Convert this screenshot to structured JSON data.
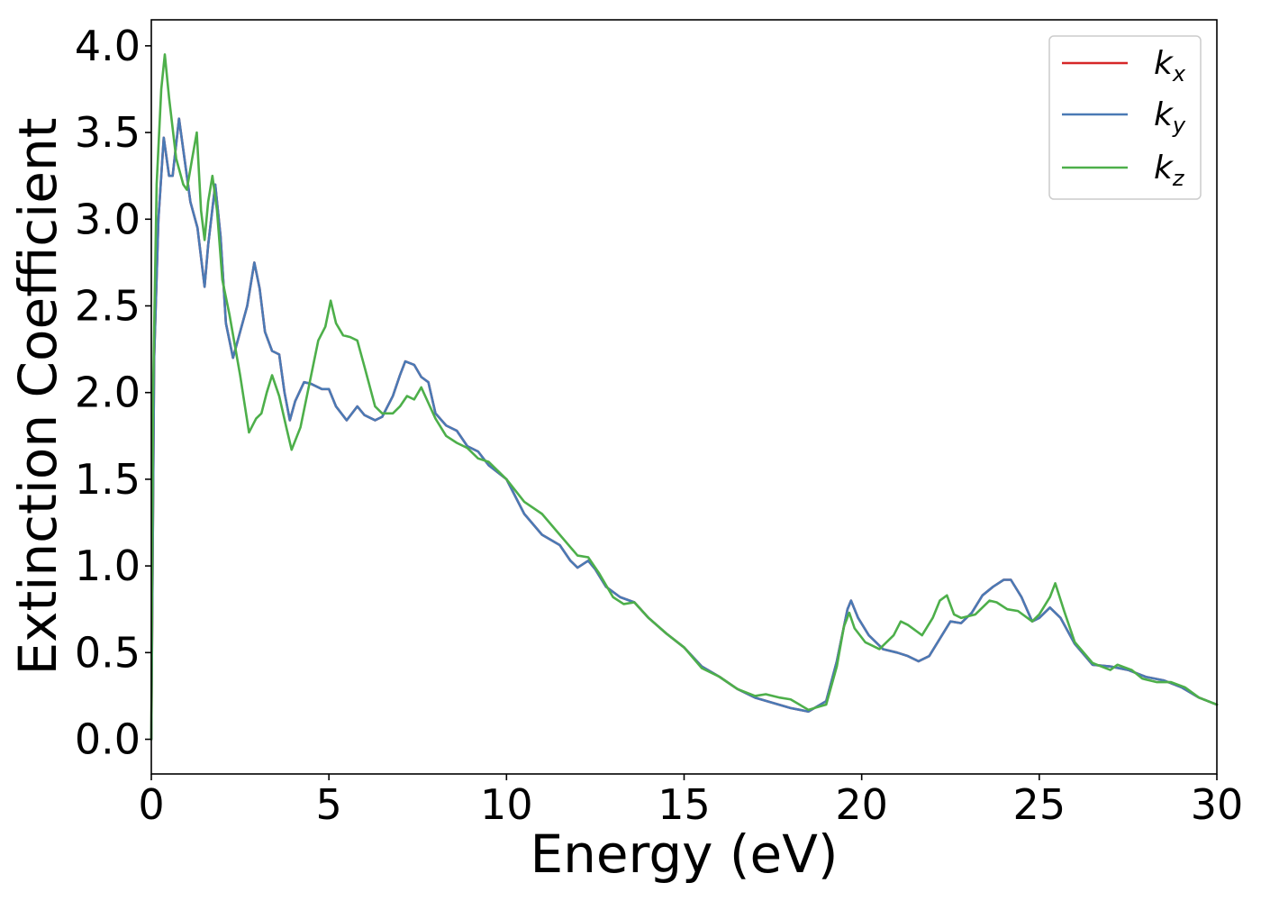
{
  "chart_data": {
    "type": "line",
    "title": "",
    "xlabel": "Energy (eV)",
    "ylabel": "Extinction Coefficient",
    "xlim": [
      0,
      30
    ],
    "ylim": [
      -0.2,
      4.15
    ],
    "grid": false,
    "legend_position": "top-right",
    "x_ticks": [
      0,
      5,
      10,
      15,
      20,
      25,
      30
    ],
    "x_tick_labels": [
      "0",
      "5",
      "10",
      "15",
      "20",
      "25",
      "30"
    ],
    "y_ticks": [
      0.0,
      0.5,
      1.0,
      1.5,
      2.0,
      2.5,
      3.0,
      3.5,
      4.0
    ],
    "y_tick_labels": [
      "0.0",
      "0.5",
      "1.0",
      "1.5",
      "2.0",
      "2.5",
      "3.0",
      "3.5",
      "4.0"
    ],
    "series": [
      {
        "name": "k_x",
        "label_base": "k",
        "label_sub": "x",
        "color": "#d62728",
        "points": [
          [
            0,
            0
          ],
          [
            0.08,
            2.2
          ],
          [
            0.2,
            3.0
          ],
          [
            0.35,
            3.47
          ],
          [
            0.5,
            3.25
          ],
          [
            0.6,
            3.25
          ],
          [
            0.78,
            3.58
          ],
          [
            0.9,
            3.4
          ],
          [
            1.1,
            3.1
          ],
          [
            1.3,
            2.95
          ],
          [
            1.5,
            2.61
          ],
          [
            1.6,
            2.85
          ],
          [
            1.8,
            3.2
          ],
          [
            1.95,
            2.9
          ],
          [
            2.1,
            2.4
          ],
          [
            2.3,
            2.2
          ],
          [
            2.5,
            2.35
          ],
          [
            2.7,
            2.5
          ],
          [
            2.9,
            2.75
          ],
          [
            3.05,
            2.6
          ],
          [
            3.2,
            2.35
          ],
          [
            3.4,
            2.24
          ],
          [
            3.6,
            2.22
          ],
          [
            3.75,
            2.0
          ],
          [
            3.9,
            1.84
          ],
          [
            4.05,
            1.95
          ],
          [
            4.3,
            2.06
          ],
          [
            4.5,
            2.05
          ],
          [
            4.8,
            2.02
          ],
          [
            5.0,
            2.02
          ],
          [
            5.2,
            1.92
          ],
          [
            5.5,
            1.84
          ],
          [
            5.8,
            1.92
          ],
          [
            6.0,
            1.87
          ],
          [
            6.3,
            1.84
          ],
          [
            6.5,
            1.86
          ],
          [
            6.8,
            1.98
          ],
          [
            7.0,
            2.1
          ],
          [
            7.15,
            2.18
          ],
          [
            7.4,
            2.16
          ],
          [
            7.6,
            2.09
          ],
          [
            7.8,
            2.06
          ],
          [
            8.0,
            1.88
          ],
          [
            8.3,
            1.81
          ],
          [
            8.6,
            1.78
          ],
          [
            8.9,
            1.69
          ],
          [
            9.2,
            1.66
          ],
          [
            9.5,
            1.58
          ],
          [
            10.0,
            1.5
          ],
          [
            10.5,
            1.3
          ],
          [
            11.0,
            1.18
          ],
          [
            11.5,
            1.12
          ],
          [
            11.8,
            1.03
          ],
          [
            12.0,
            0.99
          ],
          [
            12.3,
            1.03
          ],
          [
            12.5,
            0.98
          ],
          [
            12.8,
            0.88
          ],
          [
            13.2,
            0.82
          ],
          [
            13.6,
            0.79
          ],
          [
            14.0,
            0.7
          ],
          [
            14.5,
            0.61
          ],
          [
            15.0,
            0.53
          ],
          [
            15.5,
            0.42
          ],
          [
            16.0,
            0.36
          ],
          [
            16.5,
            0.29
          ],
          [
            17.0,
            0.24
          ],
          [
            17.5,
            0.21
          ],
          [
            18.0,
            0.18
          ],
          [
            18.5,
            0.16
          ],
          [
            19.0,
            0.22
          ],
          [
            19.3,
            0.45
          ],
          [
            19.6,
            0.75
          ],
          [
            19.7,
            0.8
          ],
          [
            19.9,
            0.7
          ],
          [
            20.2,
            0.6
          ],
          [
            20.6,
            0.52
          ],
          [
            21.0,
            0.5
          ],
          [
            21.3,
            0.48
          ],
          [
            21.6,
            0.45
          ],
          [
            21.9,
            0.48
          ],
          [
            22.2,
            0.58
          ],
          [
            22.5,
            0.68
          ],
          [
            22.8,
            0.67
          ],
          [
            23.1,
            0.73
          ],
          [
            23.4,
            0.83
          ],
          [
            23.7,
            0.88
          ],
          [
            24.0,
            0.92
          ],
          [
            24.2,
            0.92
          ],
          [
            24.5,
            0.82
          ],
          [
            24.8,
            0.68
          ],
          [
            25.0,
            0.7
          ],
          [
            25.3,
            0.76
          ],
          [
            25.6,
            0.7
          ],
          [
            26.0,
            0.55
          ],
          [
            26.5,
            0.43
          ],
          [
            27.0,
            0.42
          ],
          [
            27.5,
            0.4
          ],
          [
            28.0,
            0.36
          ],
          [
            28.5,
            0.34
          ],
          [
            29.0,
            0.3
          ],
          [
            29.5,
            0.24
          ],
          [
            30.0,
            0.2
          ]
        ]
      },
      {
        "name": "k_y",
        "label_base": "k",
        "label_sub": "y",
        "color": "#4a7ab5",
        "points": [
          [
            0,
            0
          ],
          [
            0.08,
            2.2
          ],
          [
            0.2,
            3.0
          ],
          [
            0.35,
            3.47
          ],
          [
            0.5,
            3.25
          ],
          [
            0.6,
            3.25
          ],
          [
            0.78,
            3.58
          ],
          [
            0.9,
            3.4
          ],
          [
            1.1,
            3.1
          ],
          [
            1.3,
            2.95
          ],
          [
            1.5,
            2.61
          ],
          [
            1.6,
            2.85
          ],
          [
            1.8,
            3.2
          ],
          [
            1.95,
            2.9
          ],
          [
            2.1,
            2.4
          ],
          [
            2.3,
            2.2
          ],
          [
            2.5,
            2.35
          ],
          [
            2.7,
            2.5
          ],
          [
            2.9,
            2.75
          ],
          [
            3.05,
            2.6
          ],
          [
            3.2,
            2.35
          ],
          [
            3.4,
            2.24
          ],
          [
            3.6,
            2.22
          ],
          [
            3.75,
            2.0
          ],
          [
            3.9,
            1.84
          ],
          [
            4.05,
            1.95
          ],
          [
            4.3,
            2.06
          ],
          [
            4.5,
            2.05
          ],
          [
            4.8,
            2.02
          ],
          [
            5.0,
            2.02
          ],
          [
            5.2,
            1.92
          ],
          [
            5.5,
            1.84
          ],
          [
            5.8,
            1.92
          ],
          [
            6.0,
            1.87
          ],
          [
            6.3,
            1.84
          ],
          [
            6.5,
            1.86
          ],
          [
            6.8,
            1.98
          ],
          [
            7.0,
            2.1
          ],
          [
            7.15,
            2.18
          ],
          [
            7.4,
            2.16
          ],
          [
            7.6,
            2.09
          ],
          [
            7.8,
            2.06
          ],
          [
            8.0,
            1.88
          ],
          [
            8.3,
            1.81
          ],
          [
            8.6,
            1.78
          ],
          [
            8.9,
            1.69
          ],
          [
            9.2,
            1.66
          ],
          [
            9.5,
            1.58
          ],
          [
            10.0,
            1.5
          ],
          [
            10.5,
            1.3
          ],
          [
            11.0,
            1.18
          ],
          [
            11.5,
            1.12
          ],
          [
            11.8,
            1.03
          ],
          [
            12.0,
            0.99
          ],
          [
            12.3,
            1.03
          ],
          [
            12.5,
            0.98
          ],
          [
            12.8,
            0.88
          ],
          [
            13.2,
            0.82
          ],
          [
            13.6,
            0.79
          ],
          [
            14.0,
            0.7
          ],
          [
            14.5,
            0.61
          ],
          [
            15.0,
            0.53
          ],
          [
            15.5,
            0.42
          ],
          [
            16.0,
            0.36
          ],
          [
            16.5,
            0.29
          ],
          [
            17.0,
            0.24
          ],
          [
            17.5,
            0.21
          ],
          [
            18.0,
            0.18
          ],
          [
            18.5,
            0.16
          ],
          [
            19.0,
            0.22
          ],
          [
            19.3,
            0.45
          ],
          [
            19.6,
            0.75
          ],
          [
            19.7,
            0.8
          ],
          [
            19.9,
            0.7
          ],
          [
            20.2,
            0.6
          ],
          [
            20.6,
            0.52
          ],
          [
            21.0,
            0.5
          ],
          [
            21.3,
            0.48
          ],
          [
            21.6,
            0.45
          ],
          [
            21.9,
            0.48
          ],
          [
            22.2,
            0.58
          ],
          [
            22.5,
            0.68
          ],
          [
            22.8,
            0.67
          ],
          [
            23.1,
            0.73
          ],
          [
            23.4,
            0.83
          ],
          [
            23.7,
            0.88
          ],
          [
            24.0,
            0.92
          ],
          [
            24.2,
            0.92
          ],
          [
            24.5,
            0.82
          ],
          [
            24.8,
            0.68
          ],
          [
            25.0,
            0.7
          ],
          [
            25.3,
            0.76
          ],
          [
            25.6,
            0.7
          ],
          [
            26.0,
            0.55
          ],
          [
            26.5,
            0.43
          ],
          [
            27.0,
            0.42
          ],
          [
            27.5,
            0.4
          ],
          [
            28.0,
            0.36
          ],
          [
            28.5,
            0.34
          ],
          [
            29.0,
            0.3
          ],
          [
            29.5,
            0.24
          ],
          [
            30.0,
            0.2
          ]
        ]
      },
      {
        "name": "k_z",
        "label_base": "k",
        "label_sub": "z",
        "color": "#4daf4a",
        "points": [
          [
            0,
            0
          ],
          [
            0.05,
            2.0
          ],
          [
            0.15,
            3.2
          ],
          [
            0.28,
            3.75
          ],
          [
            0.38,
            3.95
          ],
          [
            0.5,
            3.7
          ],
          [
            0.7,
            3.35
          ],
          [
            0.9,
            3.2
          ],
          [
            1.0,
            3.17
          ],
          [
            1.15,
            3.35
          ],
          [
            1.28,
            3.5
          ],
          [
            1.4,
            3.05
          ],
          [
            1.5,
            2.88
          ],
          [
            1.6,
            3.1
          ],
          [
            1.72,
            3.25
          ],
          [
            1.85,
            3.05
          ],
          [
            2.0,
            2.65
          ],
          [
            2.2,
            2.45
          ],
          [
            2.5,
            2.1
          ],
          [
            2.75,
            1.77
          ],
          [
            2.95,
            1.85
          ],
          [
            3.1,
            1.88
          ],
          [
            3.25,
            2.0
          ],
          [
            3.4,
            2.1
          ],
          [
            3.6,
            1.98
          ],
          [
            3.8,
            1.8
          ],
          [
            3.95,
            1.67
          ],
          [
            4.2,
            1.8
          ],
          [
            4.5,
            2.1
          ],
          [
            4.7,
            2.3
          ],
          [
            4.9,
            2.38
          ],
          [
            5.05,
            2.53
          ],
          [
            5.2,
            2.4
          ],
          [
            5.4,
            2.33
          ],
          [
            5.6,
            2.32
          ],
          [
            5.8,
            2.3
          ],
          [
            6.0,
            2.15
          ],
          [
            6.3,
            1.92
          ],
          [
            6.5,
            1.88
          ],
          [
            6.8,
            1.88
          ],
          [
            7.0,
            1.92
          ],
          [
            7.2,
            1.98
          ],
          [
            7.4,
            1.96
          ],
          [
            7.6,
            2.03
          ],
          [
            7.8,
            1.94
          ],
          [
            8.0,
            1.85
          ],
          [
            8.3,
            1.75
          ],
          [
            8.6,
            1.71
          ],
          [
            8.9,
            1.68
          ],
          [
            9.2,
            1.62
          ],
          [
            9.5,
            1.6
          ],
          [
            10.0,
            1.5
          ],
          [
            10.5,
            1.37
          ],
          [
            11.0,
            1.3
          ],
          [
            11.5,
            1.18
          ],
          [
            12.0,
            1.06
          ],
          [
            12.3,
            1.05
          ],
          [
            12.6,
            0.96
          ],
          [
            13.0,
            0.82
          ],
          [
            13.3,
            0.78
          ],
          [
            13.6,
            0.79
          ],
          [
            14.0,
            0.7
          ],
          [
            14.5,
            0.61
          ],
          [
            15.0,
            0.53
          ],
          [
            15.5,
            0.41
          ],
          [
            16.0,
            0.36
          ],
          [
            16.5,
            0.29
          ],
          [
            17.0,
            0.25
          ],
          [
            17.3,
            0.26
          ],
          [
            17.7,
            0.24
          ],
          [
            18.0,
            0.23
          ],
          [
            18.5,
            0.17
          ],
          [
            19.0,
            0.2
          ],
          [
            19.3,
            0.42
          ],
          [
            19.5,
            0.65
          ],
          [
            19.65,
            0.73
          ],
          [
            19.8,
            0.64
          ],
          [
            20.1,
            0.56
          ],
          [
            20.5,
            0.52
          ],
          [
            20.9,
            0.6
          ],
          [
            21.1,
            0.68
          ],
          [
            21.3,
            0.66
          ],
          [
            21.7,
            0.6
          ],
          [
            22.0,
            0.7
          ],
          [
            22.2,
            0.8
          ],
          [
            22.4,
            0.83
          ],
          [
            22.6,
            0.72
          ],
          [
            22.8,
            0.7
          ],
          [
            23.2,
            0.72
          ],
          [
            23.6,
            0.8
          ],
          [
            23.8,
            0.79
          ],
          [
            24.1,
            0.75
          ],
          [
            24.4,
            0.74
          ],
          [
            24.8,
            0.68
          ],
          [
            25.0,
            0.72
          ],
          [
            25.3,
            0.82
          ],
          [
            25.45,
            0.9
          ],
          [
            25.7,
            0.74
          ],
          [
            26.0,
            0.56
          ],
          [
            26.5,
            0.44
          ],
          [
            27.0,
            0.4
          ],
          [
            27.2,
            0.43
          ],
          [
            27.6,
            0.4
          ],
          [
            27.9,
            0.35
          ],
          [
            28.3,
            0.33
          ],
          [
            28.7,
            0.33
          ],
          [
            29.1,
            0.3
          ],
          [
            29.5,
            0.24
          ],
          [
            30.0,
            0.2
          ]
        ]
      }
    ]
  }
}
